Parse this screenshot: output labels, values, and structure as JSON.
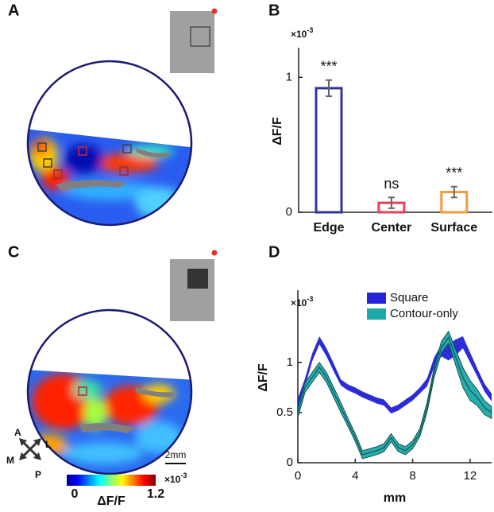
{
  "panel_labels": [
    "A",
    "B",
    "C",
    "D"
  ],
  "colorbar": {
    "ticks": [
      0,
      1.2
    ],
    "label": "ΔF/F",
    "scale": "×10",
    "exponent": "-3"
  },
  "scale_bar": "2mm",
  "compass": [
    "A",
    "L",
    "M",
    "P"
  ],
  "chart_data": [
    {
      "type": "bar",
      "categories": [
        "Edge",
        "Center",
        "Surface"
      ],
      "values": [
        0.92,
        0.07,
        0.15
      ],
      "errors": [
        0.06,
        0.04,
        0.04
      ],
      "colors": [
        "#33339a",
        "#e8405a",
        "#f29a3c"
      ],
      "annotations": [
        "***",
        "ns",
        "***"
      ],
      "ylabel": "ΔF/F",
      "y_scale": "×10",
      "y_exponent": "-3",
      "ylim": [
        0,
        1.22
      ],
      "yticks": [
        0,
        1
      ]
    },
    {
      "type": "line",
      "xlabel": "mm",
      "ylabel": "ΔF/F",
      "y_scale": "×10",
      "y_exponent": "-3",
      "x": [
        0,
        0.5,
        1,
        1.5,
        2,
        2.5,
        3,
        3.5,
        4,
        4.5,
        5,
        5.5,
        6,
        6.5,
        7,
        7.5,
        8,
        8.5,
        9,
        9.5,
        10,
        10.5,
        11,
        11.5,
        12,
        12.5,
        13,
        13.5
      ],
      "series": [
        {
          "name": "Square",
          "color": "#2424d8",
          "values": [
            0.6,
            0.8,
            1.05,
            1.22,
            1.1,
            0.95,
            0.8,
            0.75,
            0.72,
            0.68,
            0.65,
            0.62,
            0.6,
            0.52,
            0.55,
            0.6,
            0.65,
            0.72,
            0.8,
            1.0,
            1.12,
            1.1,
            1.15,
            1.2,
            1.05,
            0.9,
            0.75,
            0.65
          ],
          "errors": [
            0.04,
            0.04,
            0.04,
            0.04,
            0.04,
            0.04,
            0.03,
            0.03,
            0.03,
            0.03,
            0.03,
            0.03,
            0.03,
            0.03,
            0.03,
            0.03,
            0.03,
            0.03,
            0.04,
            0.05,
            0.06,
            0.08,
            0.08,
            0.06,
            0.05,
            0.04,
            0.04,
            0.04
          ]
        },
        {
          "name": "Contour-only",
          "color": "#1ea8a8",
          "values": [
            0.5,
            0.75,
            0.85,
            0.95,
            0.85,
            0.7,
            0.55,
            0.4,
            0.25,
            0.08,
            0.1,
            0.12,
            0.15,
            0.25,
            0.15,
            0.12,
            0.18,
            0.3,
            0.55,
            0.9,
            1.15,
            1.25,
            1.05,
            0.85,
            0.72,
            0.65,
            0.55,
            0.5
          ],
          "errors": [
            0.05,
            0.05,
            0.05,
            0.05,
            0.05,
            0.05,
            0.05,
            0.04,
            0.04,
            0.04,
            0.04,
            0.04,
            0.04,
            0.04,
            0.04,
            0.04,
            0.04,
            0.04,
            0.05,
            0.05,
            0.06,
            0.06,
            0.08,
            0.1,
            0.1,
            0.08,
            0.07,
            0.06
          ]
        }
      ],
      "xlim": [
        0,
        13.5
      ],
      "xticks": [
        0,
        4,
        8,
        12
      ],
      "ylim": [
        0,
        1.72
      ],
      "yticks": [
        0,
        0.5,
        1
      ],
      "legend": "upper right"
    }
  ]
}
